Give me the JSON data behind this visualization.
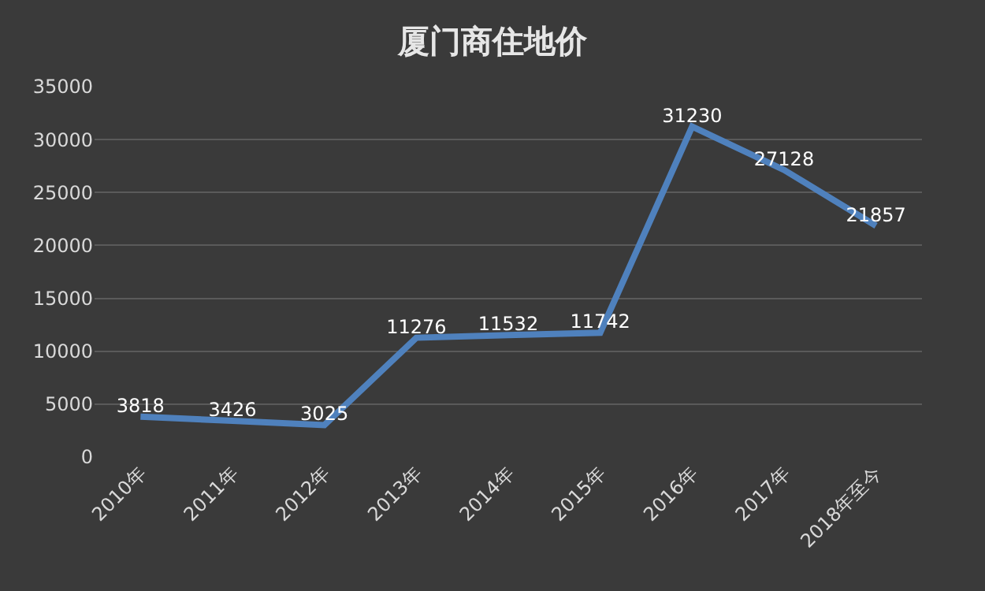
{
  "chart_data": {
    "type": "line",
    "title": "厦门商住地价",
    "categories": [
      "2010年",
      "2011年",
      "2012年",
      "2013年",
      "2014年",
      "2015年",
      "2016年",
      "2017年",
      "2018年至今"
    ],
    "series": [
      {
        "color": "#4f81bd",
        "values": [
          3818,
          3426,
          3025,
          11276,
          11532,
          11742,
          31230,
          27128,
          21857
        ]
      }
    ],
    "ylim": [
      0,
      35000
    ],
    "yticks": [
      0,
      5000,
      10000,
      15000,
      20000,
      25000,
      30000,
      35000
    ],
    "grid": "y",
    "marker": "none",
    "line_style": "solid",
    "data_labels": true
  }
}
